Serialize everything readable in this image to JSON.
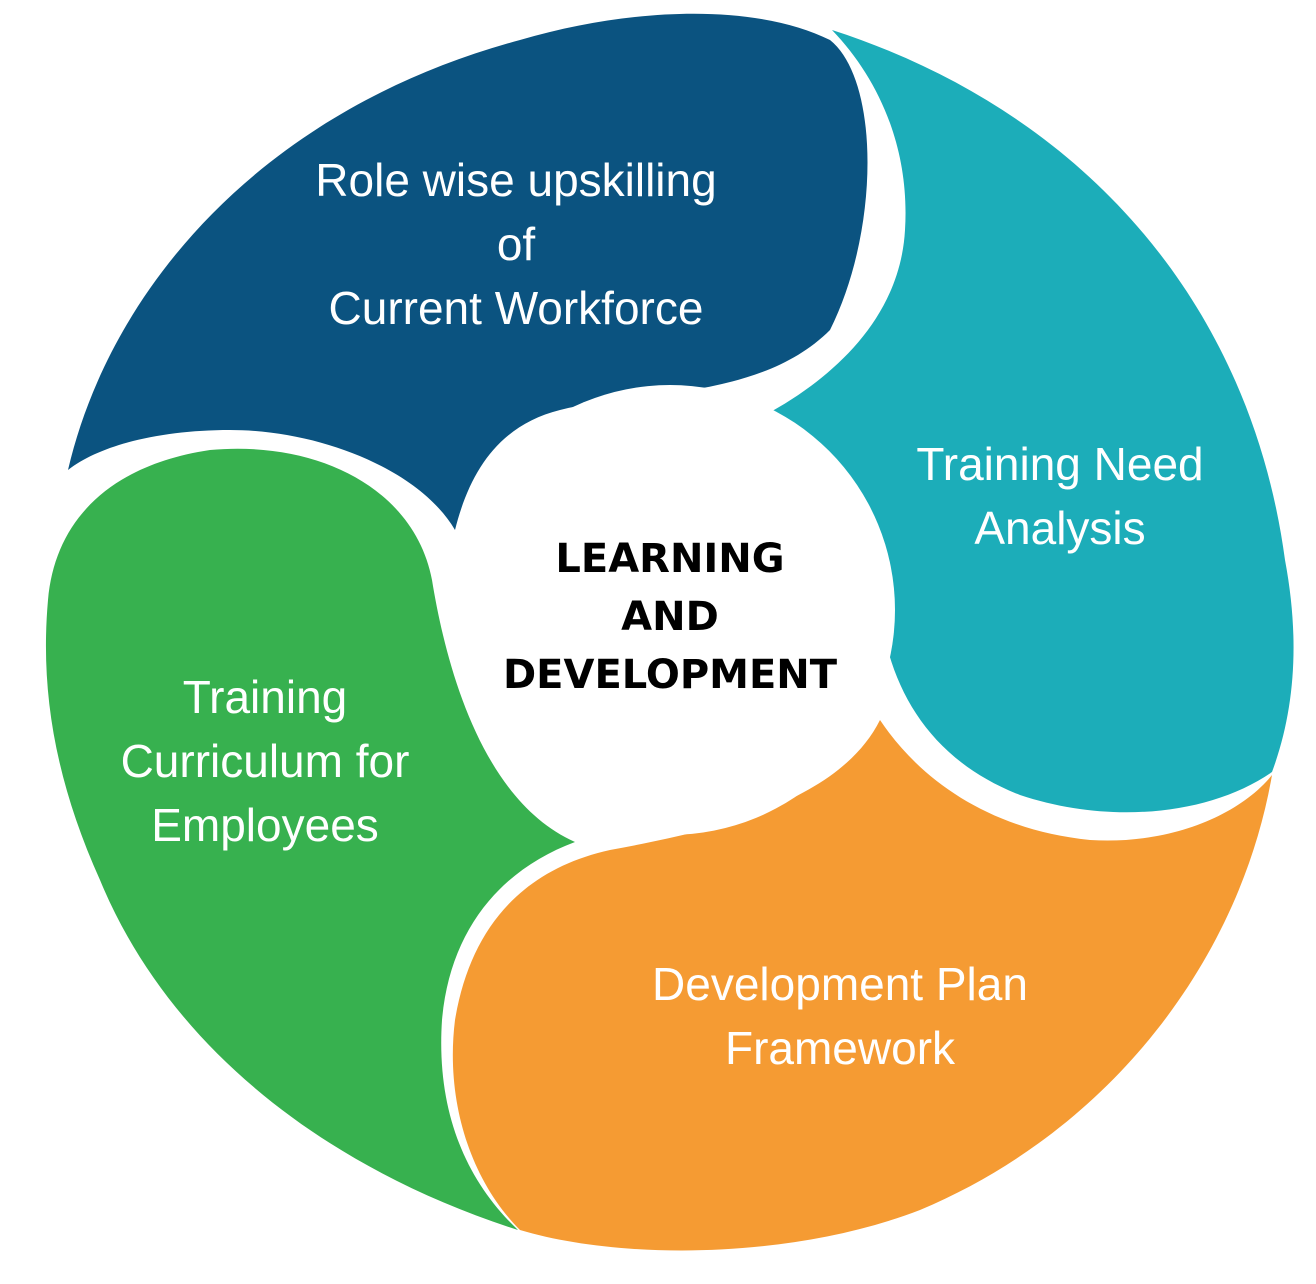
{
  "colors": {
    "role_segment": "#0B5380",
    "training_need_segment": "#1CADB9",
    "development_plan_segment": "#F59B33",
    "curriculum_segment": "#37B14F",
    "center": "#FFFFFF",
    "segment_text": "#FFFFFF",
    "center_text": "#000000"
  },
  "center": {
    "lines": [
      "LEARNING",
      "AND",
      "DEVELOPMENT"
    ]
  },
  "segments": [
    {
      "id": "role",
      "lines": [
        "Role wise upskilling",
        "of",
        "Current Workforce"
      ]
    },
    {
      "id": "training_need",
      "lines": [
        "Training Need",
        "Analysis"
      ]
    },
    {
      "id": "development_plan",
      "lines": [
        "Development Plan",
        "Framework"
      ]
    },
    {
      "id": "curriculum",
      "lines": [
        "Training",
        "Curriculum for",
        "Employees"
      ]
    }
  ]
}
